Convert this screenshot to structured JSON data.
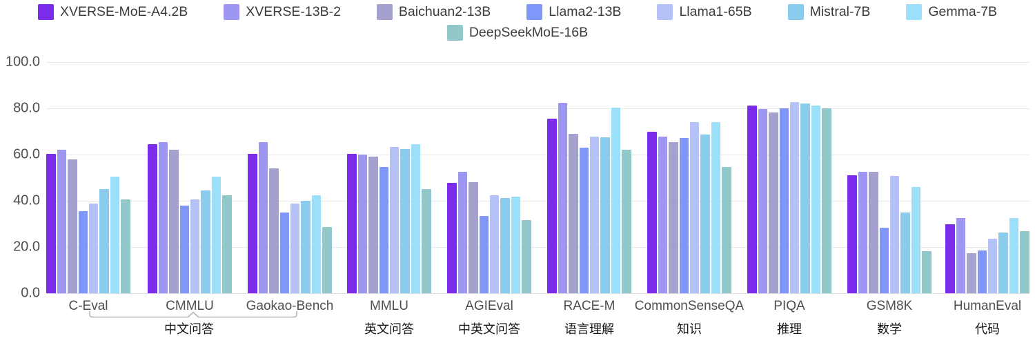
{
  "chart_data": {
    "type": "bar",
    "title": "",
    "grid": true,
    "legend_position": "top",
    "ylim": [
      0,
      100
    ],
    "yticks": [
      0,
      20,
      40,
      60,
      80,
      100
    ],
    "ytick_labels": [
      "0.0",
      "20.0",
      "40.0",
      "60.0",
      "80.0",
      "100.0"
    ],
    "categories": [
      "C-Eval",
      "CMMLU",
      "Gaokao-Bench",
      "MMLU",
      "AGIEval",
      "RACE-M",
      "CommonSenseQA",
      "PIQA",
      "GSM8K",
      "HumanEval"
    ],
    "category_annotations": [
      {
        "label": "中文问答",
        "span": [
          0,
          2
        ],
        "bracket": true
      },
      {
        "label": "英文问答",
        "span": [
          3,
          3
        ],
        "bracket": false
      },
      {
        "label": "中英文问答",
        "span": [
          4,
          4
        ],
        "bracket": false
      },
      {
        "label": "语言理解",
        "span": [
          5,
          5
        ],
        "bracket": false
      },
      {
        "label": "知识",
        "span": [
          6,
          6
        ],
        "bracket": false
      },
      {
        "label": "推理",
        "span": [
          7,
          7
        ],
        "bracket": false
      },
      {
        "label": "数学",
        "span": [
          8,
          8
        ],
        "bracket": false
      },
      {
        "label": "代码",
        "span": [
          9,
          9
        ],
        "bracket": false
      }
    ],
    "series": [
      {
        "name": "XVERSE-MoE-A4.2B",
        "color": "#7B2BEA",
        "values": [
          60.4,
          64.5,
          60.2,
          60.2,
          47.8,
          75.4,
          70.0,
          81.3,
          51.0,
          30.0
        ]
      },
      {
        "name": "XVERSE-13B-2",
        "color": "#9D97F2",
        "values": [
          62.0,
          65.5,
          65.4,
          60.1,
          52.4,
          82.4,
          67.7,
          79.6,
          52.5,
          32.4
        ]
      },
      {
        "name": "Baichuan2-13B",
        "color": "#A5A1CE",
        "values": [
          58.0,
          62.0,
          54.1,
          59.2,
          48.2,
          68.9,
          65.5,
          78.3,
          52.6,
          17.3
        ]
      },
      {
        "name": "Llama2-13B",
        "color": "#7F97F8",
        "values": [
          35.5,
          38.0,
          35.0,
          54.7,
          33.5,
          62.9,
          67.2,
          80.1,
          28.5,
          18.5
        ]
      },
      {
        "name": "Llama1-65B",
        "color": "#B5C2F8",
        "values": [
          38.8,
          40.5,
          38.7,
          63.4,
          42.4,
          67.9,
          73.9,
          82.7,
          50.7,
          23.7
        ]
      },
      {
        "name": "Mistral-7B",
        "color": "#8BCBEC",
        "values": [
          45.0,
          44.6,
          40.1,
          62.5,
          41.1,
          67.4,
          68.7,
          82.1,
          35.0,
          26.3
        ]
      },
      {
        "name": "Gemma-7B",
        "color": "#9BDFFA",
        "values": [
          50.3,
          50.3,
          42.3,
          64.4,
          41.8,
          80.2,
          73.9,
          81.3,
          46.1,
          32.4
        ]
      },
      {
        "name": "DeepSeekMoE-16B",
        "color": "#93C8CA",
        "values": [
          40.6,
          42.3,
          28.7,
          45.0,
          31.5,
          62.1,
          54.7,
          80.0,
          18.3,
          26.8
        ]
      }
    ],
    "legend_rows": [
      [
        0,
        1,
        2,
        3,
        4,
        5,
        6
      ],
      [
        7
      ]
    ],
    "bracket_color": "#b3b3b3"
  }
}
